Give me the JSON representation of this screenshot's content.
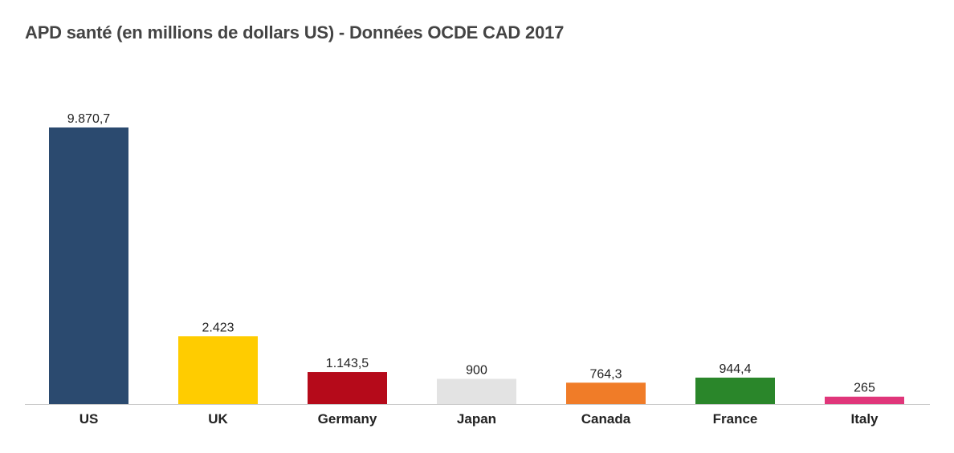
{
  "chart_data": {
    "type": "bar",
    "title": "APD santé (en millions de dollars US) - Données OCDE CAD 2017",
    "xlabel": "",
    "ylabel": "",
    "ylim": [
      0,
      9870.7
    ],
    "grid": false,
    "legend": "none",
    "categories": [
      "US",
      "UK",
      "Germany",
      "Japan",
      "Canada",
      "France",
      "Italy"
    ],
    "values": [
      9870.7,
      2423,
      1143.5,
      900,
      764.3,
      944.4,
      265
    ],
    "value_labels": [
      "9.870,7",
      "2.423",
      "1.143,5",
      "900",
      "764,3",
      "944,4",
      "265"
    ],
    "colors": [
      "#2b4a6f",
      "#ffcc00",
      "#b50a1a",
      "#e3e3e3",
      "#f07c28",
      "#2a862a",
      "#e0367a"
    ]
  }
}
